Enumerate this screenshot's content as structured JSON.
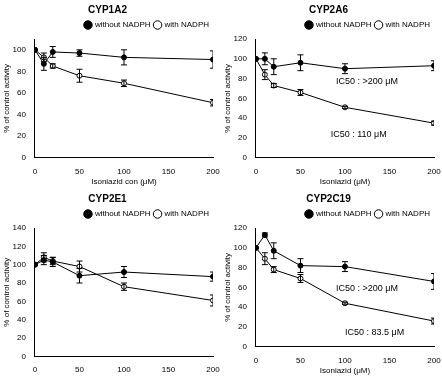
{
  "chart_data": [
    {
      "type": "line",
      "title": "CYP1A2",
      "x_label": "Isoniazid con (μM)",
      "y_label": "% of control activity",
      "x": [
        0,
        10,
        20,
        50,
        100,
        200
      ],
      "xlim": [
        0,
        200
      ],
      "xticks": [
        0,
        50,
        100,
        150,
        200
      ],
      "ylim": [
        0,
        110
      ],
      "yticks": [
        0,
        20,
        40,
        60,
        80,
        100
      ],
      "grid": false,
      "legend": "top right",
      "series": [
        {
          "name": "without NADPH",
          "color": "#000000",
          "marker": "circle",
          "line_style": "solid",
          "values": [
            100,
            87,
            98,
            97,
            93,
            91
          ],
          "errors": [
            0,
            6,
            5,
            3,
            7,
            8
          ]
        },
        {
          "name": "with NADPH",
          "color": "#000000",
          "marker": "open circle",
          "line_style": "solid",
          "values": [
            100,
            93,
            85,
            76,
            69,
            51
          ],
          "errors": [
            0,
            4,
            2,
            6,
            3,
            3
          ]
        }
      ],
      "annotations": []
    },
    {
      "type": "line",
      "title": "CYP2A6",
      "x_label": "Isoniazid (μM)",
      "y_label": "% of control activity",
      "x": [
        0,
        10,
        20,
        50,
        100,
        200
      ],
      "xlim": [
        0,
        200
      ],
      "xticks": [
        0,
        50,
        100,
        150,
        200
      ],
      "ylim": [
        0,
        120
      ],
      "yticks": [
        0,
        20,
        40,
        60,
        80,
        100,
        120
      ],
      "grid": false,
      "legend": "top right",
      "series": [
        {
          "name": "without NADPH",
          "color": "#000000",
          "marker": "circle",
          "line_style": "solid",
          "values": [
            100,
            100,
            92,
            96,
            90,
            93
          ],
          "errors": [
            0,
            6,
            8,
            8,
            5,
            5
          ]
        },
        {
          "name": "with NADPH",
          "color": "#000000",
          "marker": "open circle",
          "line_style": "solid",
          "values": [
            100,
            84,
            73,
            66,
            51,
            35
          ],
          "errors": [
            0,
            5,
            2,
            3,
            1,
            2
          ]
        }
      ],
      "annotations": [
        "IC50 : >200 μM",
        "IC50 : 110 μM"
      ]
    },
    {
      "type": "line",
      "title": "CYP2E1",
      "y_label": "% of control activity",
      "x": [
        0,
        10,
        20,
        50,
        100,
        200
      ],
      "xlim": [
        0,
        200
      ],
      "xticks": [
        0,
        50,
        100,
        150,
        200
      ],
      "ylim": [
        0,
        140
      ],
      "yticks": [
        0,
        20,
        40,
        60,
        80,
        100,
        120,
        140
      ],
      "grid": false,
      "legend": "top right",
      "series": [
        {
          "name": "without NADPH",
          "color": "#000000",
          "marker": "circle",
          "line_style": "solid",
          "values": [
            100,
            105,
            103,
            88,
            92,
            87
          ],
          "errors": [
            0,
            5,
            5,
            8,
            6,
            5
          ]
        },
        {
          "name": "with NADPH",
          "color": "#000000",
          "marker": "open circle",
          "line_style": "solid",
          "values": [
            100,
            108,
            104,
            98,
            76,
            61
          ],
          "errors": [
            0,
            5,
            4,
            6,
            4,
            6
          ]
        }
      ],
      "annotations": []
    },
    {
      "type": "line",
      "title": "CYP2C19",
      "x_label": "Isoniazid (μM)",
      "y_label": "% of control activity",
      "x": [
        0,
        10,
        20,
        50,
        100,
        200
      ],
      "xlim": [
        0,
        200
      ],
      "xticks": [
        0,
        50,
        100,
        150,
        200
      ],
      "ylim": [
        0,
        120
      ],
      "yticks": [
        0,
        20,
        40,
        60,
        80,
        100,
        120
      ],
      "grid": false,
      "legend": "top right",
      "series": [
        {
          "name": "without NADPH",
          "color": "#000000",
          "marker": "circle",
          "line_style": "solid",
          "values": [
            100,
            113,
            97,
            82,
            81,
            66
          ],
          "errors": [
            0,
            2,
            8,
            7,
            5,
            8
          ]
        },
        {
          "name": "with NADPH",
          "color": "#000000",
          "marker": "open circle",
          "line_style": "solid",
          "values": [
            100,
            89,
            78,
            69,
            44,
            26
          ],
          "errors": [
            0,
            6,
            3,
            4,
            1,
            3
          ]
        }
      ],
      "annotations": [
        "IC50 : >200 μM",
        "IC50 : 83.5 μM"
      ]
    }
  ]
}
